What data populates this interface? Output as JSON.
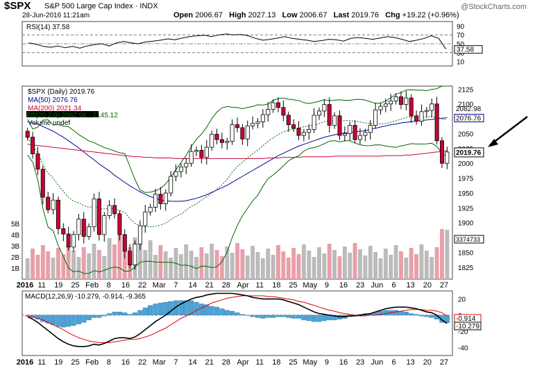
{
  "header": {
    "symbol": "$SPX",
    "name": "S&P 500 Large Cap Index",
    "exchange": "INDX",
    "datetime": "28-Jun-2016 11:21am",
    "open_label": "Open",
    "open": "2006.67",
    "high_label": "High",
    "high": "2027.13",
    "low_label": "Low",
    "low": "2006.67",
    "last_label": "Last",
    "last": "2019.76",
    "chg_label": "Chg",
    "chg": "+19.22 (+0.96%)",
    "logo": "@StockCharts.com"
  },
  "colors": {
    "up": "#ffffff",
    "down": "#cc0033",
    "ma50": "#000099",
    "ma200": "#cc0033",
    "bollinger": "#006600",
    "volume_up": "#bbbbbb",
    "volume_down": "#e8a0a8",
    "macd_hist": "#4aa3d9",
    "arrow": "#000000"
  },
  "chart_data": [
    {
      "type": "line",
      "panel": "rsi",
      "legend": "RSI(14) 37.58",
      "value_label": "37.58",
      "ylim": [
        0,
        100
      ],
      "yticks": [
        10,
        30,
        50,
        70,
        90
      ],
      "values": [
        52,
        49,
        44,
        42,
        45,
        41,
        44,
        40,
        45,
        48,
        50,
        45,
        52,
        55,
        52,
        50,
        54,
        56,
        58,
        61,
        59,
        63,
        66,
        68,
        69,
        66,
        70,
        72,
        70,
        71,
        68,
        62,
        58,
        60,
        63,
        66,
        62,
        60,
        58,
        55,
        57,
        60,
        59,
        56,
        62,
        64,
        62,
        60,
        63,
        66,
        64,
        60,
        55,
        58,
        62,
        68,
        62,
        38
      ]
    },
    {
      "type": "candlestick",
      "panel": "price",
      "legend": [
        "$SPX (Daily) 2019.76",
        "MA(50) 2076.76",
        "MA(200) 2021.34",
        "BB(20,2.0) 2082.98 - 2145.12",
        "Volume undef"
      ],
      "ylim": [
        1805,
        2130
      ],
      "yticks": [
        1825,
        1850,
        1875,
        1900,
        1925,
        1950,
        1975,
        2000,
        2025,
        2050,
        2075,
        2100,
        2125
      ],
      "price_label": "2019.76",
      "ma50_label": "2076.76",
      "bb_label": "2082.98",
      "volume_label": "3374733",
      "volume_ticks": [
        "1B",
        "2B",
        "3B",
        "4B",
        "5B"
      ],
      "xticks": [
        "2016",
        "11",
        "19",
        "25",
        "Feb",
        "8",
        "16",
        "22",
        "Mar",
        "7",
        "14",
        "21",
        "28",
        "Apr",
        "11",
        "18",
        "25",
        "May",
        "9",
        "16",
        "23",
        "Jun",
        "6",
        "13",
        "20",
        "27"
      ],
      "closes": [
        2044,
        2016,
        1990,
        1943,
        1922,
        1938,
        1890,
        1881,
        1859,
        1880,
        1906,
        1877,
        1893,
        1940,
        1880,
        1912,
        1929,
        1915,
        1880,
        1852,
        1829,
        1864,
        1895,
        1918,
        1926,
        1948,
        1932,
        1950,
        1978,
        1986,
        1994,
        2000,
        2020,
        2022,
        2010,
        2027,
        2049,
        2040,
        2035,
        2037,
        2065,
        2060,
        2041,
        2063,
        2067,
        2070,
        2082,
        2091,
        2102,
        2094,
        2081,
        2065,
        2059,
        2047,
        2052,
        2057,
        2081,
        2088,
        2099,
        2064,
        2080,
        2047,
        2050,
        2064,
        2040,
        2047,
        2052,
        2064,
        2090,
        2096,
        2100,
        2105,
        2112,
        2099,
        2110,
        2080,
        2071,
        2087,
        2089,
        2100,
        2038,
        2000,
        2019
      ],
      "ma50": [
        2070,
        2068,
        2066,
        2062,
        2058,
        2054,
        2049,
        2044,
        2038,
        2032,
        2026,
        2019,
        2012,
        2006,
        1999,
        1993,
        1987,
        1980,
        1974,
        1968,
        1962,
        1957,
        1952,
        1948,
        1944,
        1941,
        1938,
        1937,
        1936,
        1936,
        1936,
        1937,
        1939,
        1941,
        1944,
        1947,
        1951,
        1955,
        1959,
        1963,
        1968,
        1973,
        1978,
        1983,
        1988,
        1993,
        1998,
        2003,
        2008,
        2013,
        2017,
        2021,
        2025,
        2029,
        2032,
        2035,
        2038,
        2041,
        2044,
        2046,
        2048,
        2050,
        2051,
        2052,
        2053,
        2054,
        2055,
        2057,
        2059,
        2061,
        2063,
        2065,
        2066,
        2068,
        2069,
        2070,
        2071,
        2072,
        2073,
        2074,
        2075,
        2076,
        2076.76
      ],
      "ma200": [
        2032,
        2031,
        2030,
        2029,
        2028,
        2027,
        2026,
        2025,
        2024,
        2023,
        2022,
        2021,
        2020,
        2019,
        2018,
        2017,
        2016,
        2015,
        2014,
        2013,
        2012,
        2011,
        2011,
        2010,
        2010,
        2009,
        2009,
        2009,
        2009,
        2008,
        2008,
        2008,
        2008,
        2008,
        2008,
        2008,
        2008,
        2008,
        2008,
        2008,
        2008,
        2008,
        2008,
        2008,
        2008,
        2008,
        2008,
        2009,
        2009,
        2009,
        2010,
        2010,
        2010,
        2010,
        2011,
        2011,
        2011,
        2011,
        2011,
        2011,
        2012,
        2012,
        2012,
        2012,
        2012,
        2012,
        2012,
        2012,
        2012,
        2012,
        2013,
        2013,
        2013,
        2013,
        2014,
        2014,
        2015,
        2016,
        2017,
        2018,
        2019,
        2020,
        2021.34
      ]
    },
    {
      "type": "line",
      "panel": "macd",
      "legend": "MACD(12,26,9) -10.279, -0.914, -9.365",
      "macd_label": "-10.279",
      "signal_label": "-0.914",
      "ylim": [
        -50,
        30
      ],
      "yticks": [
        -40,
        -20,
        0,
        20
      ],
      "macd": [
        -2,
        -5,
        -9,
        -14,
        -19,
        -24,
        -29,
        -33,
        -36,
        -38,
        -39,
        -39,
        -38,
        -36,
        -37,
        -35,
        -32,
        -29,
        -28,
        -28,
        -29,
        -27,
        -23,
        -18,
        -13,
        -8,
        -4,
        0,
        5,
        10,
        14,
        17,
        20,
        22,
        23,
        25,
        26,
        27,
        27,
        27,
        27,
        26,
        25,
        24,
        22,
        21,
        20,
        20,
        20,
        20,
        19,
        17,
        15,
        13,
        10,
        7,
        4,
        2,
        1,
        0,
        -1,
        -2,
        -2,
        -1,
        -1,
        0,
        1,
        2,
        4,
        6,
        8,
        9,
        10,
        10,
        10,
        9,
        8,
        6,
        4,
        3,
        0,
        -6,
        -10.279
      ],
      "signal": [
        -1,
        -2,
        -4,
        -6,
        -9,
        -12,
        -15,
        -18,
        -22,
        -25,
        -28,
        -30,
        -32,
        -33,
        -34,
        -34,
        -34,
        -33,
        -32,
        -31,
        -30,
        -30,
        -29,
        -27,
        -25,
        -22,
        -19,
        -16,
        -12,
        -8,
        -4,
        -1,
        2,
        6,
        9,
        12,
        15,
        17,
        19,
        21,
        22,
        23,
        24,
        24,
        24,
        24,
        24,
        23,
        23,
        22,
        21,
        20,
        19,
        17,
        16,
        14,
        12,
        10,
        8,
        6,
        5,
        3,
        2,
        1,
        0,
        -1,
        -1,
        0,
        0,
        1,
        2,
        3,
        4,
        5,
        6,
        7,
        7,
        7,
        6,
        6,
        5,
        3,
        -0.914
      ],
      "xticks": [
        "2016",
        "11",
        "19",
        "25",
        "Feb",
        "8",
        "16",
        "22",
        "Mar",
        "7",
        "14",
        "21",
        "28",
        "Apr",
        "11",
        "18",
        "25",
        "May",
        "9",
        "16",
        "23",
        "Jun",
        "6",
        "13",
        "20",
        "27"
      ]
    }
  ]
}
